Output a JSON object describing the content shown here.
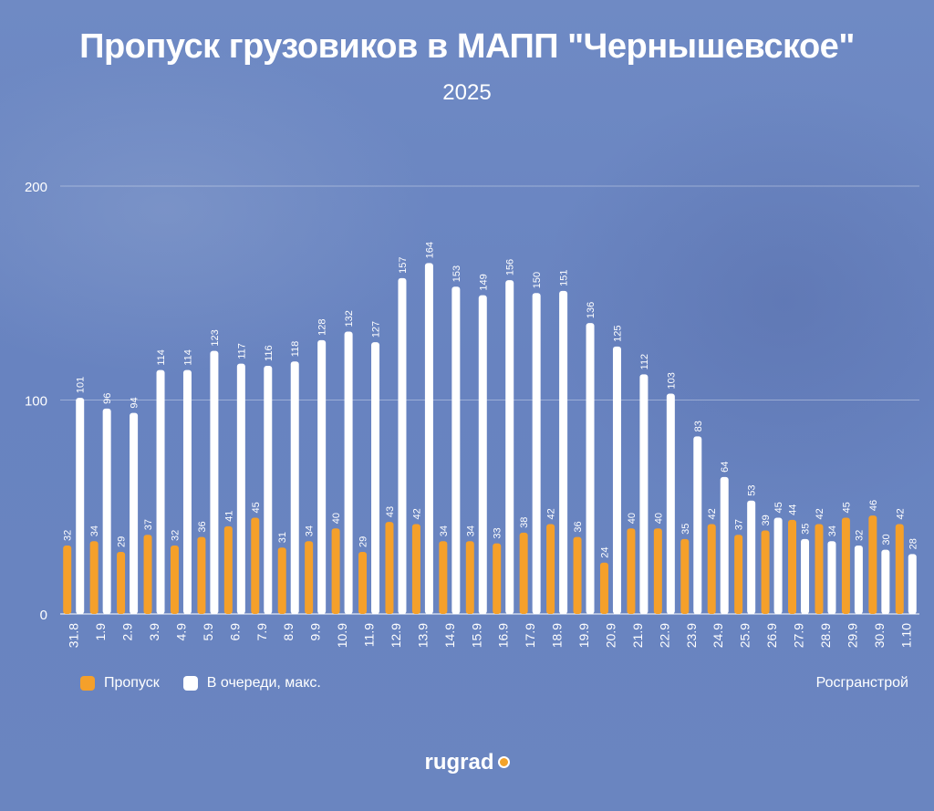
{
  "chart_data": {
    "type": "bar",
    "title": "Пропуск грузовиков в МАПП \"Чернышевское\"",
    "subtitle": "2025",
    "categories": [
      "31.8",
      "1.9",
      "2.9",
      "3.9",
      "4.9",
      "5.9",
      "6.9",
      "7.9",
      "8.9",
      "9.9",
      "10.9",
      "11.9",
      "12.9",
      "13.9",
      "14.9",
      "15.9",
      "16.9",
      "17.9",
      "18.9",
      "19.9",
      "20.9",
      "21.9",
      "22.9",
      "23.9",
      "24.9",
      "25.9",
      "26.9",
      "27.9",
      "28.9",
      "29.9",
      "30.9",
      "1.10"
    ],
    "series": [
      {
        "name": "Пропуск",
        "color": "#f5a02a",
        "values": [
          32,
          34,
          29,
          37,
          32,
          36,
          41,
          45,
          31,
          34,
          40,
          29,
          43,
          42,
          34,
          34,
          33,
          38,
          42,
          36,
          24,
          40,
          40,
          35,
          42,
          37,
          39,
          44,
          42,
          45,
          46,
          42
        ]
      },
      {
        "name": "В очереди, макс.",
        "color": "#ffffff",
        "values": [
          101,
          96,
          94,
          114,
          114,
          123,
          117,
          116,
          118,
          128,
          132,
          127,
          157,
          164,
          153,
          149,
          156,
          150,
          151,
          136,
          125,
          112,
          103,
          83,
          64,
          53,
          45,
          35,
          34,
          32,
          30,
          28
        ]
      }
    ],
    "ylim": [
      0,
      200
    ],
    "yticks": [
      0,
      100,
      200
    ],
    "grid": true,
    "legend_position": "bottom-left",
    "source": "Росгранстрой"
  },
  "logo": {
    "text": "rugrad"
  }
}
